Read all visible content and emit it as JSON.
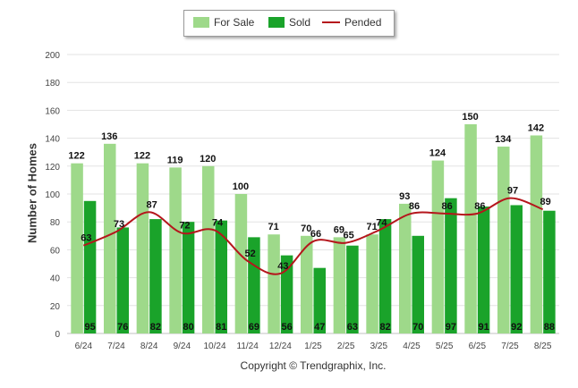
{
  "chart_data": {
    "type": "bar",
    "categories": [
      "6/24",
      "7/24",
      "8/24",
      "9/24",
      "10/24",
      "11/24",
      "12/24",
      "1/25",
      "2/25",
      "3/25",
      "4/25",
      "5/25",
      "6/25",
      "7/25",
      "8/25"
    ],
    "series": [
      {
        "name": "For Sale",
        "type": "bar",
        "color": "#9ed98a",
        "values": [
          122,
          136,
          122,
          119,
          120,
          100,
          71,
          70,
          69,
          71,
          93,
          124,
          150,
          134,
          142
        ]
      },
      {
        "name": "Sold",
        "type": "bar",
        "color": "#1aa32a",
        "values": [
          95,
          76,
          82,
          80,
          81,
          69,
          56,
          47,
          63,
          82,
          70,
          97,
          91,
          92,
          88
        ]
      },
      {
        "name": "Pended",
        "type": "line",
        "color": "#b5161c",
        "values": [
          63,
          73,
          87,
          72,
          74,
          52,
          43,
          66,
          65,
          74,
          86,
          86,
          86,
          97,
          89
        ]
      }
    ],
    "xlabel": "",
    "ylabel": "Number of Homes",
    "ylim": [
      0,
      200
    ],
    "yticks": [
      "0",
      "20",
      "40",
      "60",
      "80",
      "100",
      "120",
      "140",
      "160",
      "180",
      "200"
    ],
    "grid": true,
    "legend_position": "top-center"
  },
  "footer": {
    "copyright": "Copyright © Trendgraphix, Inc."
  }
}
